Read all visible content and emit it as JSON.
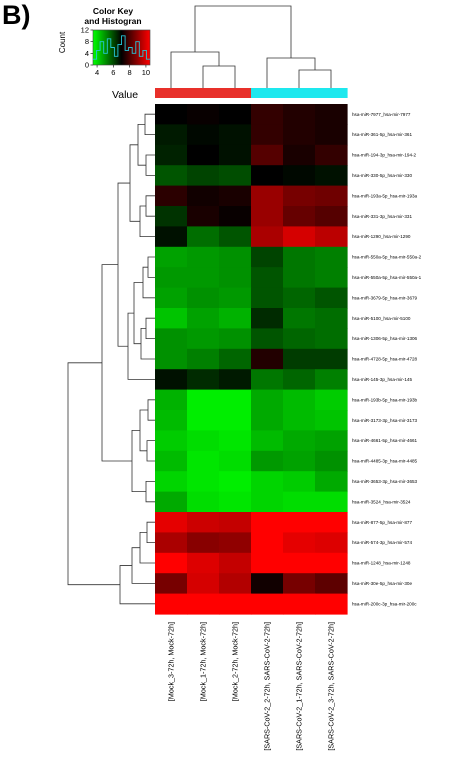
{
  "panel_label": "B)",
  "colors": {
    "low": "#00ff00",
    "mid": "#000000",
    "high": "#ff0000",
    "group_mock": "#e8302a",
    "group_sars": "#1ee8ee",
    "histogram": "#26c6da"
  },
  "chart_data": {
    "type": "heatmap",
    "title": "Color Key\nand Histogran",
    "color_key": {
      "title_lines": [
        "Color Key",
        "and Histogran"
      ],
      "ylabel": "Count",
      "xlabel": "Value",
      "xticks": [
        4,
        6,
        8,
        10
      ],
      "yticks": [
        0,
        4,
        8,
        12
      ],
      "xlim": [
        3.5,
        10.5
      ],
      "histogram_counts": [
        2,
        5,
        8,
        4,
        9,
        6,
        3,
        7,
        10,
        5,
        6,
        4,
        8,
        3,
        5,
        2
      ]
    },
    "column_groups": [
      "Mock",
      "Mock",
      "Mock",
      "SARS-CoV-2",
      "SARS-CoV-2",
      "SARS-CoV-2"
    ],
    "columns": [
      "[Mock_3-72h, Mock-72h]",
      "[Mock_1-72h, Mock-72h]",
      "[Mock_2-72h, Mock-72h]",
      "[SARS-CoV-2_2-72h, SARS-CoV-2-72h]",
      "[SARS-CoV-2_1-72h, SARS-CoV-2-72h]",
      "[SARS-CoV-2_3-72h, SARS-CoV-2-72h]"
    ],
    "rows": [
      "hsa-miR-7977_hsa-mir-7977",
      "hsa-miR-361-5p_hsa-mir-361",
      "hsa-miR-194-3p_hsa-mir-194-2",
      "hsa-miR-330-5p_hsa-mir-330",
      "hsa-miR-193a-5p_hsa-mir-193a",
      "hsa-miR-331-3p_hsa-mir-331",
      "hsa-miR-1290_hsa-mir-1290",
      "hsa-miR-550a-5p_hsa-mir-550a-2",
      "hsa-miR-550a-5p_hsa-mir-550a-1",
      "hsa-miR-3679-5p_hsa-mir-3679",
      "hsa-miR-5100_hsa-mir-5100",
      "hsa-miR-1306-5p_hsa-mir-1306",
      "hsa-miR-4728-5p_hsa-mir-4728",
      "hsa-miR-145-3p_hsa-mir-145",
      "hsa-miR-193b-5p_hsa-mir-193b",
      "hsa-miR-3173-3p_hsa-mir-3173",
      "hsa-miR-4661-5p_hsa-mir-4661",
      "hsa-miR-4485-3p_hsa-mir-4485",
      "hsa-miR-3653-3p_hsa-mir-3653",
      "hsa-miR-3524_hsa-mir-3524",
      "hsa-miR-877-5p_hsa-mir-877",
      "hsa-miR-574-3p_hsa-mir-574",
      "hsa-miR-1248_hsa-mir-1248",
      "hsa-miR-30e-5p_hsa-mir-30e",
      "hsa-miR-200c-3p_hsa-mir-200c"
    ],
    "values": [
      [
        7.0,
        7.1,
        7.0,
        7.6,
        7.4,
        7.3
      ],
      [
        6.7,
        6.9,
        6.8,
        7.6,
        7.4,
        7.3
      ],
      [
        6.6,
        7.0,
        6.8,
        8.0,
        7.3,
        7.6
      ],
      [
        6.0,
        6.2,
        6.1,
        7.0,
        6.9,
        6.8
      ],
      [
        7.5,
        7.2,
        7.3,
        8.8,
        8.4,
        8.3
      ],
      [
        6.4,
        7.3,
        7.1,
        8.8,
        8.2,
        8.0
      ],
      [
        6.8,
        5.7,
        6.0,
        9.0,
        9.5,
        9.2
      ],
      [
        5.1,
        5.2,
        5.3,
        6.2,
        5.6,
        5.5
      ],
      [
        5.2,
        5.2,
        5.3,
        6.0,
        5.6,
        5.5
      ],
      [
        5.1,
        5.3,
        5.2,
        6.0,
        5.8,
        6.0
      ],
      [
        4.7,
        5.1,
        4.9,
        6.5,
        5.6,
        5.7
      ],
      [
        5.3,
        5.2,
        5.3,
        6.0,
        5.8,
        5.7
      ],
      [
        5.3,
        5.5,
        5.8,
        7.4,
        6.3,
        6.3
      ],
      [
        6.8,
        6.5,
        6.7,
        5.6,
        5.8,
        5.5
      ],
      [
        4.9,
        4.2,
        4.2,
        5.0,
        4.8,
        4.6
      ],
      [
        4.8,
        4.2,
        4.2,
        5.0,
        4.8,
        4.7
      ],
      [
        4.6,
        4.4,
        4.3,
        4.8,
        5.0,
        5.1
      ],
      [
        4.8,
        4.3,
        4.4,
        5.2,
        5.1,
        5.3
      ],
      [
        4.5,
        4.3,
        4.2,
        4.5,
        4.6,
        5.0
      ],
      [
        5.0,
        4.4,
        4.3,
        4.5,
        4.4,
        4.4
      ],
      [
        9.7,
        9.4,
        9.3,
        10.2,
        10.2,
        10.2
      ],
      [
        9.0,
        8.6,
        8.7,
        10.2,
        9.7,
        9.6
      ],
      [
        10.0,
        9.6,
        9.3,
        10.1,
        10.0,
        10.0
      ],
      [
        8.4,
        9.5,
        9.1,
        7.2,
        8.4,
        8.1
      ],
      [
        10.3,
        10.3,
        10.3,
        10.3,
        10.3,
        10.3
      ]
    ],
    "scale": {
      "min": 4,
      "mid": 7,
      "max": 10
    },
    "grid": false,
    "legend": "top-left"
  }
}
